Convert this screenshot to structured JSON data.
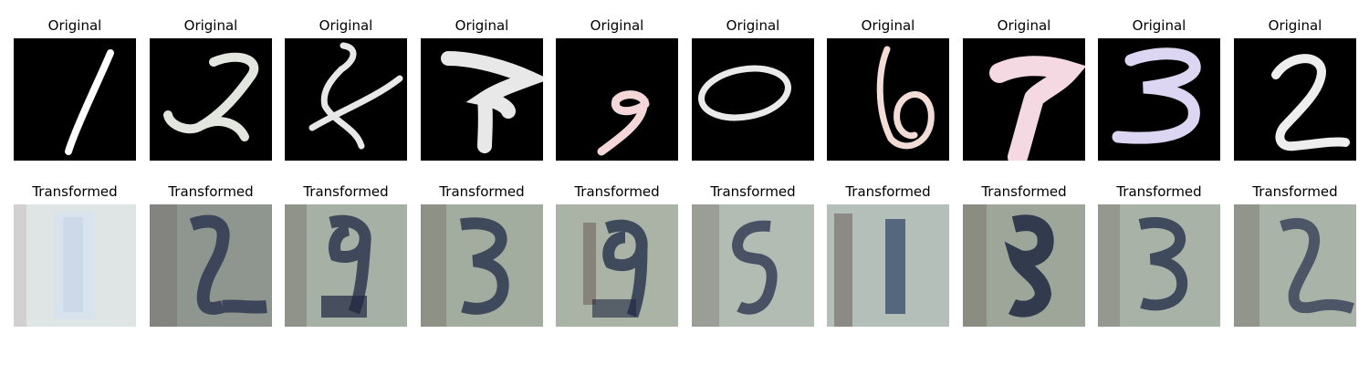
{
  "rows": [
    {
      "id": "original",
      "panels": [
        {
          "title": "Original",
          "digit": "1",
          "stroke": "#e6e6e6"
        },
        {
          "title": "Original",
          "digit": "2",
          "stroke": "#e3e6df"
        },
        {
          "title": "Original",
          "digit": "4",
          "stroke": "#e8e8e8"
        },
        {
          "title": "Original",
          "digit": "7",
          "stroke": "#e8e8e8"
        },
        {
          "title": "Original",
          "digit": "9",
          "stroke": "#f4d6d8"
        },
        {
          "title": "Original",
          "digit": "0",
          "stroke": "#eaeaea"
        },
        {
          "title": "Original",
          "digit": "6",
          "stroke": "#f3dcd6"
        },
        {
          "title": "Original",
          "digit": "7",
          "stroke": "#f4d9e2"
        },
        {
          "title": "Original",
          "digit": "3",
          "stroke": "#ddd6f2"
        },
        {
          "title": "Original",
          "digit": "2",
          "stroke": "#eeeeee"
        }
      ]
    },
    {
      "id": "transformed",
      "panels": [
        {
          "title": "Transformed",
          "digit": "1"
        },
        {
          "title": "Transformed",
          "digit": "2"
        },
        {
          "title": "Transformed",
          "digit": "9"
        },
        {
          "title": "Transformed",
          "digit": "3"
        },
        {
          "title": "Transformed",
          "digit": "9"
        },
        {
          "title": "Transformed",
          "digit": "5"
        },
        {
          "title": "Transformed",
          "digit": "1"
        },
        {
          "title": "Transformed",
          "digit": "8"
        },
        {
          "title": "Transformed",
          "digit": "3"
        },
        {
          "title": "Transformed",
          "digit": "2"
        }
      ]
    }
  ],
  "colors": {
    "original_background": "#000000",
    "transformed_background": "#a9b2a6",
    "transformed_stroke": "#2e3750"
  }
}
